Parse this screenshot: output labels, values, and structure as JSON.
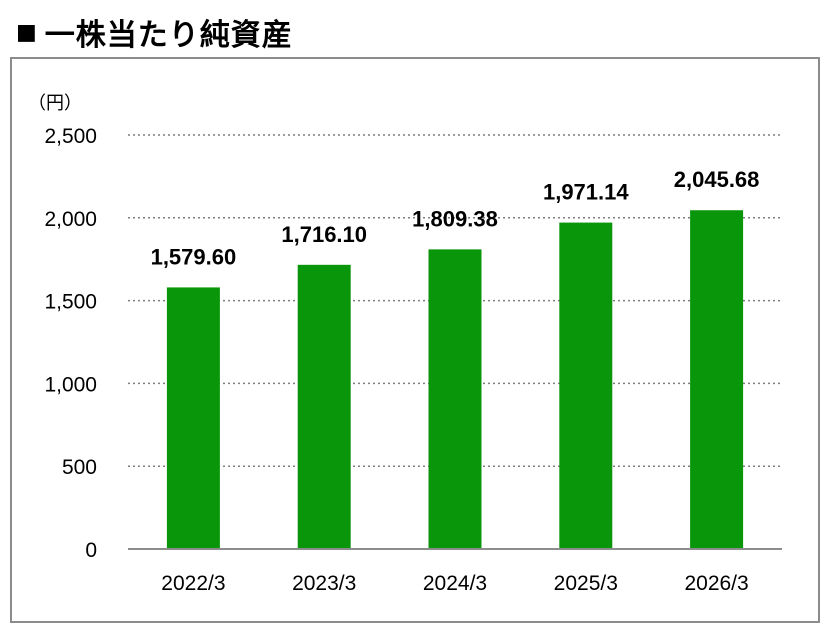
{
  "header": {
    "bullet": "■",
    "title": "一株当たり純資産"
  },
  "chart_data": {
    "type": "bar",
    "unit_label": "（円）",
    "categories": [
      "2022/3",
      "2023/3",
      "2024/3",
      "2025/3",
      "2026/3"
    ],
    "values": [
      1579.6,
      1716.1,
      1809.38,
      1971.14,
      2045.68
    ],
    "data_labels": [
      "1,579.60",
      "1,716.10",
      "1,809.38",
      "1,971.14",
      "2,045.68"
    ],
    "yticks": [
      0,
      500,
      1000,
      1500,
      2000,
      2500
    ],
    "ytick_labels": [
      "0",
      "500",
      "1,000",
      "1,500",
      "2,000",
      "2,500"
    ],
    "ylim": [
      0,
      2500
    ],
    "bar_color": "#0a960a",
    "grid": true,
    "grid_style": "dotted"
  }
}
